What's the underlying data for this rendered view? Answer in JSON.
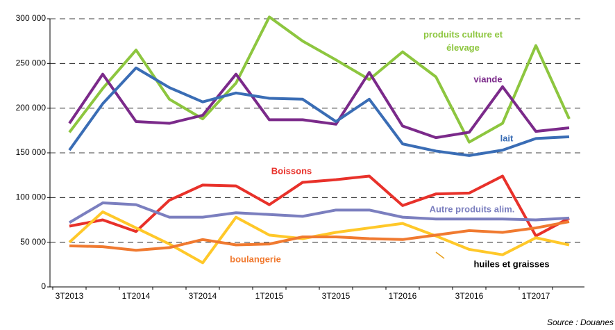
{
  "chart_data": {
    "type": "line",
    "categories": [
      "3T2013",
      null,
      "1T2014",
      null,
      "3T2014",
      null,
      "1T2015",
      null,
      "3T2015",
      null,
      "1T2016",
      null,
      "3T2016",
      null,
      "1T2017",
      null
    ],
    "series": [
      {
        "name": "produits culture et élevage",
        "color": "#8dc63f",
        "values": [
          173000,
          222000,
          265000,
          210000,
          188000,
          228000,
          302000,
          275000,
          254000,
          232000,
          263000,
          235000,
          162000,
          183000,
          270000,
          188000
        ]
      },
      {
        "name": "viande",
        "color": "#7b2a8a",
        "values": [
          183000,
          238000,
          185000,
          183000,
          192000,
          238000,
          187000,
          187000,
          182000,
          240000,
          180000,
          167000,
          173000,
          224000,
          174000,
          178000
        ]
      },
      {
        "name": "lait",
        "color": "#3a6db5",
        "values": [
          153000,
          205000,
          245000,
          223000,
          207000,
          217000,
          211000,
          210000,
          185000,
          210000,
          160000,
          152000,
          147000,
          153000,
          166000,
          168000
        ]
      },
      {
        "name": "Boissons",
        "color": "#e8312a",
        "values": [
          68000,
          75000,
          62000,
          97000,
          114000,
          113000,
          92000,
          117000,
          120000,
          124000,
          91000,
          104000,
          105000,
          124000,
          57000,
          77000
        ]
      },
      {
        "name": "Autre produits alim.",
        "color": "#7b7fbf",
        "values": [
          72000,
          94000,
          92000,
          78000,
          78000,
          83000,
          81000,
          79000,
          86000,
          86000,
          78000,
          76000,
          76000,
          76000,
          75000,
          77000
        ]
      },
      {
        "name": "huiles et graisses",
        "color": "#ffc829",
        "values": [
          50000,
          84000,
          66000,
          48000,
          27000,
          78000,
          58000,
          54000,
          61000,
          66000,
          71000,
          57000,
          42000,
          36000,
          55000,
          47000
        ]
      },
      {
        "name": "boulangerie",
        "color": "#f07a30",
        "values": [
          46000,
          45000,
          41000,
          44000,
          53000,
          47000,
          48000,
          56000,
          56000,
          54000,
          53000,
          58000,
          63000,
          61000,
          66000,
          73000
        ]
      }
    ],
    "ylim": [
      0,
      300000
    ],
    "yticks": [
      0,
      {
        "value": 50000,
        "label": "50 000"
      },
      {
        "value": 100000,
        "label": "100 000"
      },
      {
        "value": 150000,
        "label": "150 000"
      },
      {
        "value": 200000,
        "label": "200 000"
      },
      {
        "value": 250000,
        "label": "250 000"
      },
      {
        "value": 300000,
        "label": "300 000"
      }
    ],
    "grid": true,
    "source": "Source : Douanes"
  }
}
